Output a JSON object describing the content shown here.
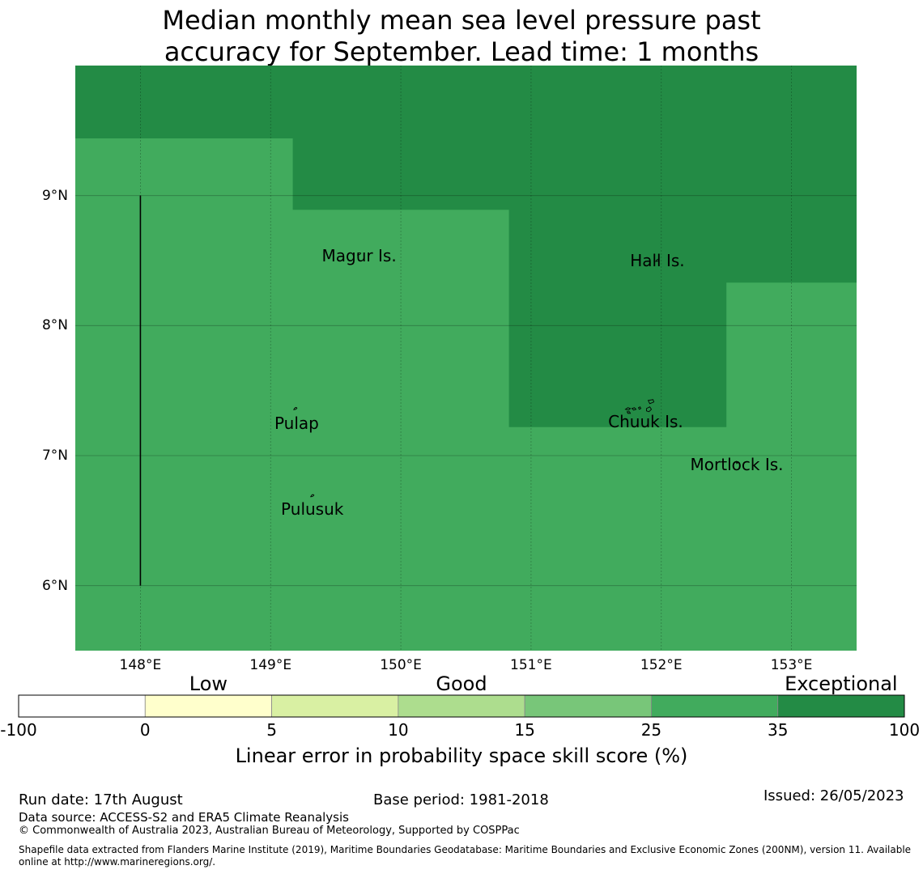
{
  "title_line1": "Median monthly mean sea level pressure past",
  "title_line2": "accuracy for September. Lead time: 1 months",
  "map": {
    "lon_range": [
      147.5,
      153.5
    ],
    "lat_range": [
      5.5,
      10.0
    ],
    "lon_ticks": [
      {
        "value": 148,
        "label": "148°E"
      },
      {
        "value": 149,
        "label": "149°E"
      },
      {
        "value": 150,
        "label": "150°E"
      },
      {
        "value": 151,
        "label": "151°E"
      },
      {
        "value": 152,
        "label": "152°E"
      },
      {
        "value": 153,
        "label": "153°E"
      }
    ],
    "lat_ticks": [
      {
        "value": 9,
        "label": "9°N"
      },
      {
        "value": 8,
        "label": "8°N"
      },
      {
        "value": 7,
        "label": "7°N"
      },
      {
        "value": 6,
        "label": "6°N"
      }
    ],
    "grid": true,
    "base_category_color": "#41ab5d",
    "exceptional_region_color": "#238b45",
    "exceptional_region": [
      [
        147.5,
        10.0
      ],
      [
        153.5,
        10.0
      ],
      [
        153.5,
        8.33
      ],
      [
        152.5,
        8.33
      ],
      [
        152.5,
        7.22
      ],
      [
        150.83,
        7.22
      ],
      [
        150.83,
        8.89
      ],
      [
        149.17,
        8.89
      ],
      [
        149.17,
        9.44
      ],
      [
        147.5,
        9.44
      ]
    ],
    "boundary_line": [
      [
        148.0,
        9.0
      ],
      [
        148.0,
        6.0
      ]
    ],
    "islands": [
      {
        "name": "Magur Is.",
        "lon": 149.68,
        "lat": 8.55,
        "label_lon": 149.68,
        "label_lat": 8.54
      },
      {
        "name": "Hall Is.",
        "lon": 151.97,
        "lat": 8.5,
        "label_lon": 151.97,
        "label_lat": 8.5
      },
      {
        "name": "Pulap",
        "lon": 149.19,
        "lat": 7.36,
        "label_lon": 149.2,
        "label_lat": 7.25
      },
      {
        "name": "Chuuk Is.",
        "lon": 151.75,
        "lat": 7.35,
        "label_lon": 151.88,
        "label_lat": 7.26
      },
      {
        "name": "Mortlock Is.",
        "lon": 152.58,
        "lat": 6.92,
        "label_lon": 152.58,
        "label_lat": 6.93
      },
      {
        "name": "Pulusuk",
        "lon": 149.32,
        "lat": 6.69,
        "label_lon": 149.32,
        "label_lat": 6.59
      }
    ]
  },
  "colorbar": {
    "categories": [
      {
        "label": "Low",
        "center_bin": 1
      },
      {
        "label": "Good",
        "center_bin": 3
      },
      {
        "label": "Exceptional",
        "center_bin": 6
      }
    ],
    "bins": [
      {
        "from": "-100",
        "to": "0",
        "color": "#ffffff"
      },
      {
        "from": "0",
        "to": "5",
        "color": "#ffffcc"
      },
      {
        "from": "5",
        "to": "10",
        "color": "#d9f0a3"
      },
      {
        "from": "10",
        "to": "15",
        "color": "#addd8e"
      },
      {
        "from": "15",
        "to": "25",
        "color": "#78c679"
      },
      {
        "from": "25",
        "to": "35",
        "color": "#41ab5d"
      },
      {
        "from": "35",
        "to": "100",
        "color": "#238b45"
      }
    ],
    "tick_labels": [
      "-100",
      "0",
      "5",
      "10",
      "15",
      "25",
      "35",
      "100"
    ],
    "title": "Linear error in probability space skill score (%)"
  },
  "footer": {
    "run_date": "Run date: 17th August",
    "base_period": "Base period: 1981-2018",
    "issued": "Issued: 26/05/2023",
    "data_source": "Data source: ACCESS-S2 and ERA5 Climate Reanalysis",
    "copyright": "© Commonwealth of Australia 2023, Australian Bureau of Meteorology, Supported by COSPPac",
    "shapefile_line1": "Shapefile data extracted from Flanders Marine Institute (2019), Maritime Boundaries Geodatabase: Maritime Boundaries and Exclusive Economic Zones (200NM), version 11. Available",
    "shapefile_line2": "online at http://www.marineregions.org/."
  }
}
